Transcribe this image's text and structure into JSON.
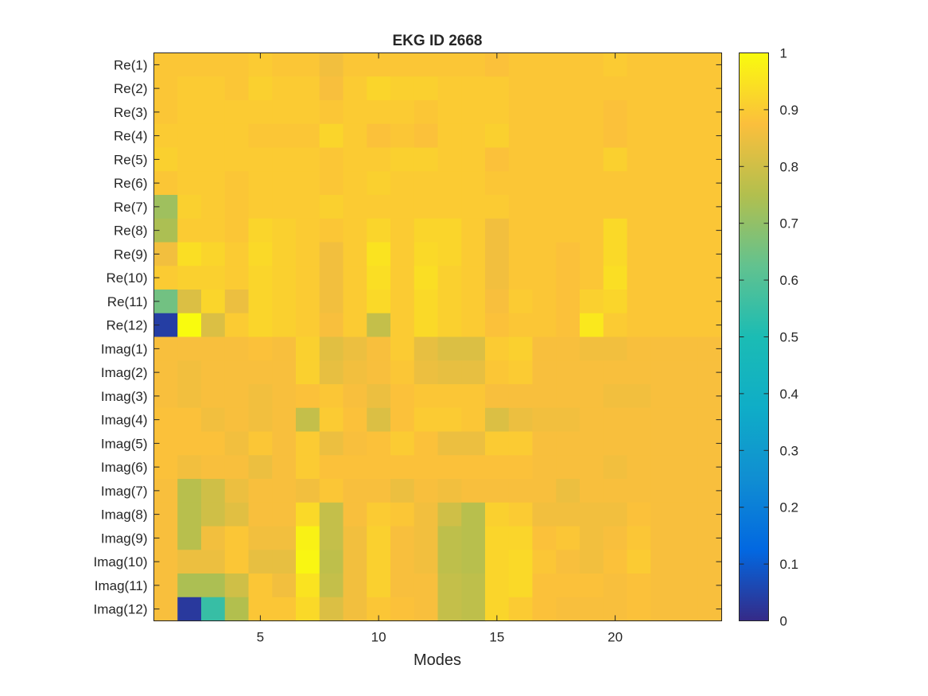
{
  "chart_data": {
    "type": "heatmap",
    "title": "EKG ID 2668",
    "xlabel": "Modes",
    "ylabel": "",
    "x_range": [
      1,
      24
    ],
    "x_ticks": [
      5,
      10,
      15,
      20
    ],
    "rows": [
      "Re(1)",
      "Re(2)",
      "Re(3)",
      "Re(4)",
      "Re(5)",
      "Re(6)",
      "Re(7)",
      "Re(8)",
      "Re(9)",
      "Re(10)",
      "Re(11)",
      "Re(12)",
      "Imag(1)",
      "Imag(2)",
      "Imag(3)",
      "Imag(4)",
      "Imag(5)",
      "Imag(6)",
      "Imag(7)",
      "Imag(8)",
      "Imag(9)",
      "Imag(10)",
      "Imag(11)",
      "Imag(12)"
    ],
    "colorbar": {
      "range": [
        0,
        1
      ],
      "ticks": [
        0,
        0.1,
        0.2,
        0.3,
        0.4,
        0.5,
        0.6,
        0.7,
        0.8,
        0.9,
        1
      ],
      "tick_labels": [
        "0",
        "0.1",
        "0.2",
        "0.3",
        "0.4",
        "0.5",
        "0.6",
        "0.7",
        "0.8",
        "0.9",
        "1"
      ],
      "colormap": "parula"
    },
    "values": [
      [
        0.89,
        0.89,
        0.89,
        0.89,
        0.9,
        0.89,
        0.89,
        0.86,
        0.89,
        0.89,
        0.89,
        0.89,
        0.89,
        0.89,
        0.88,
        0.89,
        0.89,
        0.89,
        0.89,
        0.9,
        0.89,
        0.89,
        0.89,
        0.89
      ],
      [
        0.89,
        0.9,
        0.9,
        0.89,
        0.91,
        0.9,
        0.9,
        0.87,
        0.9,
        0.92,
        0.91,
        0.91,
        0.9,
        0.9,
        0.9,
        0.89,
        0.89,
        0.89,
        0.89,
        0.89,
        0.89,
        0.89,
        0.89,
        0.89
      ],
      [
        0.89,
        0.9,
        0.9,
        0.9,
        0.9,
        0.9,
        0.9,
        0.89,
        0.9,
        0.9,
        0.9,
        0.89,
        0.9,
        0.9,
        0.9,
        0.89,
        0.89,
        0.89,
        0.89,
        0.88,
        0.89,
        0.89,
        0.89,
        0.89
      ],
      [
        0.9,
        0.9,
        0.9,
        0.9,
        0.89,
        0.89,
        0.89,
        0.92,
        0.9,
        0.88,
        0.89,
        0.88,
        0.9,
        0.9,
        0.91,
        0.89,
        0.89,
        0.89,
        0.89,
        0.88,
        0.89,
        0.89,
        0.89,
        0.89
      ],
      [
        0.91,
        0.9,
        0.9,
        0.9,
        0.9,
        0.9,
        0.9,
        0.89,
        0.9,
        0.9,
        0.91,
        0.91,
        0.9,
        0.9,
        0.88,
        0.89,
        0.89,
        0.89,
        0.89,
        0.91,
        0.89,
        0.89,
        0.89,
        0.89
      ],
      [
        0.89,
        0.9,
        0.9,
        0.89,
        0.9,
        0.9,
        0.9,
        0.89,
        0.9,
        0.91,
        0.9,
        0.9,
        0.9,
        0.9,
        0.89,
        0.89,
        0.89,
        0.89,
        0.89,
        0.89,
        0.89,
        0.89,
        0.89,
        0.89
      ],
      [
        0.72,
        0.91,
        0.9,
        0.89,
        0.9,
        0.9,
        0.9,
        0.91,
        0.9,
        0.9,
        0.9,
        0.9,
        0.9,
        0.9,
        0.9,
        0.89,
        0.89,
        0.89,
        0.89,
        0.89,
        0.89,
        0.89,
        0.89,
        0.89
      ],
      [
        0.74,
        0.9,
        0.9,
        0.89,
        0.92,
        0.91,
        0.9,
        0.89,
        0.9,
        0.92,
        0.9,
        0.92,
        0.92,
        0.9,
        0.86,
        0.89,
        0.89,
        0.89,
        0.89,
        0.93,
        0.89,
        0.89,
        0.89,
        0.89
      ],
      [
        0.86,
        0.94,
        0.92,
        0.9,
        0.93,
        0.91,
        0.9,
        0.86,
        0.9,
        0.95,
        0.9,
        0.93,
        0.92,
        0.9,
        0.86,
        0.89,
        0.89,
        0.88,
        0.89,
        0.93,
        0.89,
        0.89,
        0.89,
        0.89
      ],
      [
        0.9,
        0.91,
        0.91,
        0.9,
        0.92,
        0.91,
        0.9,
        0.86,
        0.9,
        0.94,
        0.9,
        0.94,
        0.91,
        0.9,
        0.86,
        0.89,
        0.89,
        0.88,
        0.89,
        0.94,
        0.89,
        0.89,
        0.89,
        0.89
      ],
      [
        0.65,
        0.82,
        0.92,
        0.85,
        0.92,
        0.91,
        0.9,
        0.86,
        0.9,
        0.93,
        0.9,
        0.93,
        0.91,
        0.9,
        0.87,
        0.9,
        0.89,
        0.88,
        0.91,
        0.92,
        0.89,
        0.89,
        0.89,
        0.89
      ],
      [
        0.04,
        1.0,
        0.82,
        0.9,
        0.92,
        0.91,
        0.9,
        0.87,
        0.9,
        0.78,
        0.9,
        0.93,
        0.91,
        0.9,
        0.88,
        0.89,
        0.89,
        0.88,
        0.96,
        0.9,
        0.89,
        0.89,
        0.89,
        0.89
      ],
      [
        0.87,
        0.87,
        0.87,
        0.87,
        0.88,
        0.87,
        0.91,
        0.83,
        0.85,
        0.87,
        0.9,
        0.84,
        0.82,
        0.82,
        0.9,
        0.91,
        0.87,
        0.87,
        0.86,
        0.86,
        0.87,
        0.87,
        0.87,
        0.87
      ],
      [
        0.87,
        0.86,
        0.87,
        0.87,
        0.87,
        0.87,
        0.91,
        0.84,
        0.86,
        0.87,
        0.89,
        0.85,
        0.84,
        0.84,
        0.89,
        0.9,
        0.87,
        0.87,
        0.87,
        0.87,
        0.87,
        0.87,
        0.87,
        0.87
      ],
      [
        0.87,
        0.86,
        0.87,
        0.87,
        0.86,
        0.87,
        0.88,
        0.89,
        0.87,
        0.85,
        0.88,
        0.89,
        0.89,
        0.89,
        0.87,
        0.87,
        0.87,
        0.87,
        0.87,
        0.86,
        0.86,
        0.87,
        0.87,
        0.87
      ],
      [
        0.88,
        0.88,
        0.86,
        0.87,
        0.86,
        0.87,
        0.78,
        0.9,
        0.88,
        0.82,
        0.88,
        0.9,
        0.9,
        0.89,
        0.82,
        0.85,
        0.86,
        0.86,
        0.87,
        0.87,
        0.87,
        0.87,
        0.87,
        0.87
      ],
      [
        0.88,
        0.88,
        0.88,
        0.86,
        0.89,
        0.87,
        0.9,
        0.85,
        0.87,
        0.88,
        0.9,
        0.88,
        0.85,
        0.85,
        0.9,
        0.9,
        0.87,
        0.87,
        0.87,
        0.87,
        0.87,
        0.87,
        0.87,
        0.87
      ],
      [
        0.88,
        0.86,
        0.87,
        0.87,
        0.85,
        0.87,
        0.9,
        0.88,
        0.88,
        0.88,
        0.88,
        0.88,
        0.88,
        0.88,
        0.88,
        0.88,
        0.87,
        0.87,
        0.87,
        0.86,
        0.87,
        0.87,
        0.87,
        0.87
      ],
      [
        0.87,
        0.76,
        0.8,
        0.85,
        0.87,
        0.87,
        0.86,
        0.89,
        0.87,
        0.87,
        0.85,
        0.87,
        0.86,
        0.87,
        0.87,
        0.87,
        0.87,
        0.85,
        0.87,
        0.87,
        0.87,
        0.87,
        0.87,
        0.87
      ],
      [
        0.87,
        0.76,
        0.8,
        0.83,
        0.87,
        0.87,
        0.93,
        0.78,
        0.87,
        0.9,
        0.89,
        0.86,
        0.8,
        0.76,
        0.91,
        0.9,
        0.86,
        0.86,
        0.86,
        0.86,
        0.88,
        0.87,
        0.87,
        0.87
      ],
      [
        0.87,
        0.76,
        0.86,
        0.89,
        0.86,
        0.86,
        0.98,
        0.78,
        0.86,
        0.91,
        0.87,
        0.86,
        0.77,
        0.76,
        0.92,
        0.92,
        0.88,
        0.89,
        0.86,
        0.87,
        0.89,
        0.87,
        0.87,
        0.87
      ],
      [
        0.87,
        0.85,
        0.85,
        0.89,
        0.84,
        0.84,
        0.99,
        0.77,
        0.86,
        0.91,
        0.87,
        0.86,
        0.77,
        0.76,
        0.92,
        0.93,
        0.89,
        0.87,
        0.86,
        0.88,
        0.9,
        0.87,
        0.87,
        0.87
      ],
      [
        0.87,
        0.74,
        0.74,
        0.8,
        0.89,
        0.86,
        0.95,
        0.78,
        0.86,
        0.91,
        0.87,
        0.87,
        0.78,
        0.77,
        0.92,
        0.93,
        0.88,
        0.88,
        0.88,
        0.87,
        0.88,
        0.87,
        0.87,
        0.87
      ],
      [
        0.87,
        0.03,
        0.55,
        0.75,
        0.89,
        0.89,
        0.93,
        0.82,
        0.86,
        0.89,
        0.88,
        0.87,
        0.78,
        0.77,
        0.92,
        0.9,
        0.88,
        0.87,
        0.87,
        0.87,
        0.88,
        0.87,
        0.87,
        0.87
      ]
    ]
  }
}
